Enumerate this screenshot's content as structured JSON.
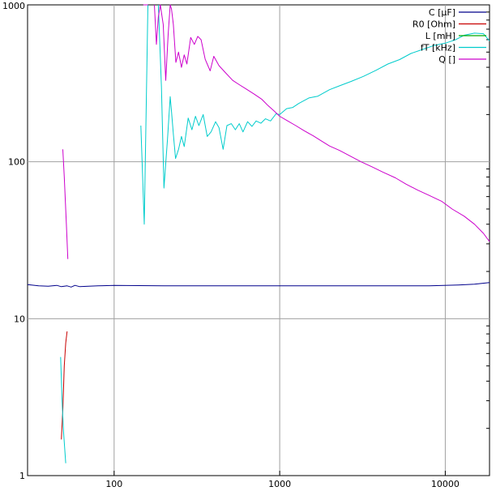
{
  "chart_data": {
    "type": "line",
    "title": "",
    "xlabel": "",
    "ylabel": "",
    "xscale": "log",
    "yscale": "log",
    "xlim": [
      30,
      18500
    ],
    "ylim": [
      1,
      1000
    ],
    "grid": true,
    "legend_position": "top-right",
    "x_ticks": [
      {
        "value": 100,
        "label": "100"
      },
      {
        "value": 1000,
        "label": "1000"
      },
      {
        "value": 10000,
        "label": "10000"
      }
    ],
    "y_ticks": [
      {
        "value": 1,
        "label": "1"
      },
      {
        "value": 10,
        "label": "10"
      },
      {
        "value": 100,
        "label": "100"
      },
      {
        "value": 1000,
        "label": "1000"
      }
    ],
    "series": [
      {
        "name": "C [µF]",
        "color": "#00008b",
        "segments": [
          [
            [
              30,
              16.5
            ],
            [
              35,
              16.2
            ],
            [
              40,
              16.1
            ],
            [
              45,
              16.3
            ],
            [
              48,
              16.0
            ],
            [
              50,
              16.1
            ],
            [
              52,
              16.2
            ],
            [
              55,
              15.9
            ],
            [
              58,
              16.3
            ],
            [
              62,
              16.0
            ],
            [
              70,
              16.1
            ],
            [
              80,
              16.2
            ],
            [
              100,
              16.3
            ],
            [
              200,
              16.2
            ],
            [
              500,
              16.2
            ],
            [
              1000,
              16.2
            ],
            [
              3000,
              16.2
            ],
            [
              8000,
              16.2
            ],
            [
              12000,
              16.4
            ],
            [
              15000,
              16.6
            ],
            [
              18500,
              17.0
            ]
          ]
        ]
      },
      {
        "name": "R0 [Ohm]",
        "color": "#c80000",
        "segments": [
          [
            [
              48,
              1.7
            ],
            [
              49,
              2.6
            ],
            [
              50,
              5.0
            ],
            [
              51,
              7.0
            ],
            [
              52,
              8.3
            ]
          ]
        ]
      },
      {
        "name": "L [mH]",
        "color": "#00aa00",
        "segments": []
      },
      {
        "name": "fT [kHz]",
        "color": "#00cccc",
        "segments": [
          [
            [
              47.5,
              5.7
            ],
            [
              48.5,
              3.0
            ],
            [
              49.5,
              1.9
            ],
            [
              51,
              1.2
            ]
          ],
          [
            [
              145,
              170
            ],
            [
              152,
              40
            ],
            [
              160,
              1000
            ]
          ],
          [
            [
              185,
              1000
            ],
            [
              193,
              300
            ],
            [
              200,
              68
            ],
            [
              210,
              140
            ],
            [
              218,
              260
            ],
            [
              222,
              210
            ],
            [
              228,
              150
            ],
            [
              235,
              105
            ],
            [
              245,
              120
            ],
            [
              255,
              145
            ],
            [
              265,
              125
            ],
            [
              280,
              190
            ],
            [
              295,
              160
            ],
            [
              310,
              195
            ],
            [
              325,
              170
            ],
            [
              345,
              200
            ],
            [
              365,
              145
            ],
            [
              385,
              155
            ],
            [
              410,
              180
            ],
            [
              430,
              165
            ],
            [
              455,
              120
            ],
            [
              480,
              170
            ],
            [
              510,
              175
            ],
            [
              540,
              160
            ],
            [
              570,
              175
            ],
            [
              600,
              155
            ],
            [
              640,
              180
            ],
            [
              680,
              168
            ],
            [
              720,
              182
            ],
            [
              770,
              176
            ],
            [
              820,
              188
            ],
            [
              880,
              182
            ],
            [
              950,
              202
            ],
            [
              1000,
              200
            ],
            [
              1100,
              218
            ],
            [
              1200,
              222
            ],
            [
              1300,
              235
            ],
            [
              1500,
              255
            ],
            [
              1700,
              262
            ],
            [
              2000,
              288
            ],
            [
              2300,
              305
            ],
            [
              2700,
              325
            ],
            [
              3200,
              350
            ],
            [
              3800,
              382
            ],
            [
              4500,
              420
            ],
            [
              5300,
              448
            ],
            [
              6200,
              490
            ],
            [
              7300,
              520
            ],
            [
              8500,
              550
            ],
            [
              10000,
              570
            ],
            [
              11500,
              598
            ],
            [
              13000,
              640
            ],
            [
              15000,
              660
            ],
            [
              17000,
              655
            ],
            [
              18500,
              590
            ]
          ]
        ]
      },
      {
        "name": "Q []",
        "color": "#cc00cc",
        "segments": [
          [
            [
              49,
              120
            ],
            [
              50,
              80
            ],
            [
              51.5,
              40
            ],
            [
              52.5,
              24
            ]
          ],
          [
            [
              150,
              1000
            ],
            [
              160,
              1000
            ]
          ],
          [
            [
              175,
              1000
            ],
            [
              180,
              560
            ],
            [
              185,
              840
            ],
            [
              190,
              1000
            ],
            [
              198,
              750
            ],
            [
              205,
              330
            ],
            [
              212,
              650
            ],
            [
              218,
              1000
            ],
            [
              222,
              940
            ],
            [
              228,
              750
            ],
            [
              236,
              430
            ],
            [
              245,
              500
            ],
            [
              255,
              400
            ],
            [
              265,
              480
            ],
            [
              275,
              420
            ],
            [
              290,
              620
            ],
            [
              305,
              560
            ],
            [
              320,
              630
            ],
            [
              335,
              600
            ],
            [
              355,
              450
            ],
            [
              380,
              380
            ],
            [
              400,
              470
            ],
            [
              430,
              410
            ],
            [
              470,
              370
            ],
            [
              520,
              330
            ],
            [
              570,
              310
            ],
            [
              630,
              290
            ],
            [
              700,
              270
            ],
            [
              780,
              250
            ],
            [
              850,
              228
            ],
            [
              920,
              212
            ],
            [
              1000,
              195
            ],
            [
              1100,
              184
            ],
            [
              1250,
              170
            ],
            [
              1400,
              158
            ],
            [
              1600,
              146
            ],
            [
              1800,
              135
            ],
            [
              2000,
              126
            ],
            [
              2300,
              118
            ],
            [
              2700,
              108
            ],
            [
              3100,
              100
            ],
            [
              3600,
              93
            ],
            [
              4200,
              86
            ],
            [
              5000,
              79
            ],
            [
              5800,
              72
            ],
            [
              6800,
              66
            ],
            [
              8000,
              61
            ],
            [
              9500,
              56
            ],
            [
              11000,
              50
            ],
            [
              13000,
              45
            ],
            [
              15000,
              40
            ],
            [
              17000,
              35
            ],
            [
              18500,
              31
            ]
          ]
        ]
      }
    ]
  }
}
